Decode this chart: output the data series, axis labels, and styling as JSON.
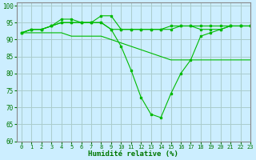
{
  "title": "",
  "xlabel": "Humidité relative (%)",
  "ylabel": "",
  "background_color": "#cceeff",
  "grid_color": "#aacccc",
  "line_color": "#00bb00",
  "xlim": [
    -0.5,
    23
  ],
  "ylim": [
    60,
    101
  ],
  "yticks": [
    60,
    65,
    70,
    75,
    80,
    85,
    90,
    95,
    100
  ],
  "xticks": [
    0,
    1,
    2,
    3,
    4,
    5,
    6,
    7,
    8,
    9,
    10,
    11,
    12,
    13,
    14,
    15,
    16,
    17,
    18,
    19,
    20,
    21,
    22,
    23
  ],
  "series_with_markers": [
    [
      92,
      93,
      93,
      94,
      95,
      95,
      95,
      95,
      95,
      93,
      93,
      93,
      93,
      93,
      93,
      94,
      94,
      94,
      94,
      94,
      94,
      94,
      94,
      94
    ],
    [
      92,
      93,
      93,
      94,
      96,
      96,
      95,
      95,
      97,
      97,
      93,
      93,
      93,
      93,
      93,
      93,
      94,
      94,
      93,
      93,
      93,
      94,
      94,
      94
    ],
    [
      92,
      93,
      93,
      94,
      95,
      95,
      95,
      95,
      95,
      93,
      88,
      81,
      73,
      68,
      67,
      74,
      80,
      84,
      91,
      92,
      93,
      94,
      94,
      94
    ]
  ],
  "series_no_markers": [
    [
      92,
      92,
      92,
      92,
      92,
      91,
      91,
      91,
      91,
      90,
      89,
      88,
      87,
      86,
      85,
      84,
      84,
      84,
      84,
      84,
      84,
      84,
      84,
      84
    ]
  ]
}
